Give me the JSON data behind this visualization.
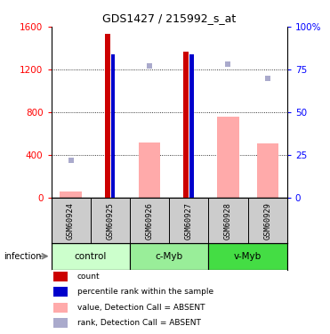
{
  "title": "GDS1427 / 215992_s_at",
  "samples": [
    "GSM60924",
    "GSM60925",
    "GSM60926",
    "GSM60927",
    "GSM60928",
    "GSM60929"
  ],
  "groups": [
    {
      "label": "control",
      "samples": [
        0,
        1
      ],
      "color": "#ccffcc"
    },
    {
      "label": "c-Myb",
      "samples": [
        2,
        3
      ],
      "color": "#99ee99"
    },
    {
      "label": "v-Myb",
      "samples": [
        4,
        5
      ],
      "color": "#44dd44"
    }
  ],
  "red_bars": [
    0,
    1530,
    0,
    1370,
    0,
    0
  ],
  "blue_bars": [
    0,
    84,
    0,
    84,
    0,
    0
  ],
  "pink_bars": [
    60,
    0,
    520,
    0,
    760,
    510
  ],
  "lavender_dots_y": [
    355,
    0,
    1230,
    0,
    1250,
    1120
  ],
  "left_ylim": [
    0,
    1600
  ],
  "right_ylim": [
    0,
    100
  ],
  "left_ticks": [
    0,
    400,
    800,
    1200,
    1600
  ],
  "right_ticks": [
    0,
    25,
    50,
    75,
    100
  ],
  "right_tick_labels": [
    "0",
    "25",
    "50",
    "75",
    "100%"
  ],
  "red_color": "#cc0000",
  "blue_color": "#0000cc",
  "pink_color": "#ffaaaa",
  "lavender_color": "#aaaacc",
  "bg_color": "#ffffff",
  "label_area_color": "#cccccc",
  "legend_items": [
    {
      "color": "#cc0000",
      "label": "count"
    },
    {
      "color": "#0000cc",
      "label": "percentile rank within the sample"
    },
    {
      "color": "#ffaaaa",
      "label": "value, Detection Call = ABSENT"
    },
    {
      "color": "#aaaacc",
      "label": "rank, Detection Call = ABSENT"
    }
  ]
}
